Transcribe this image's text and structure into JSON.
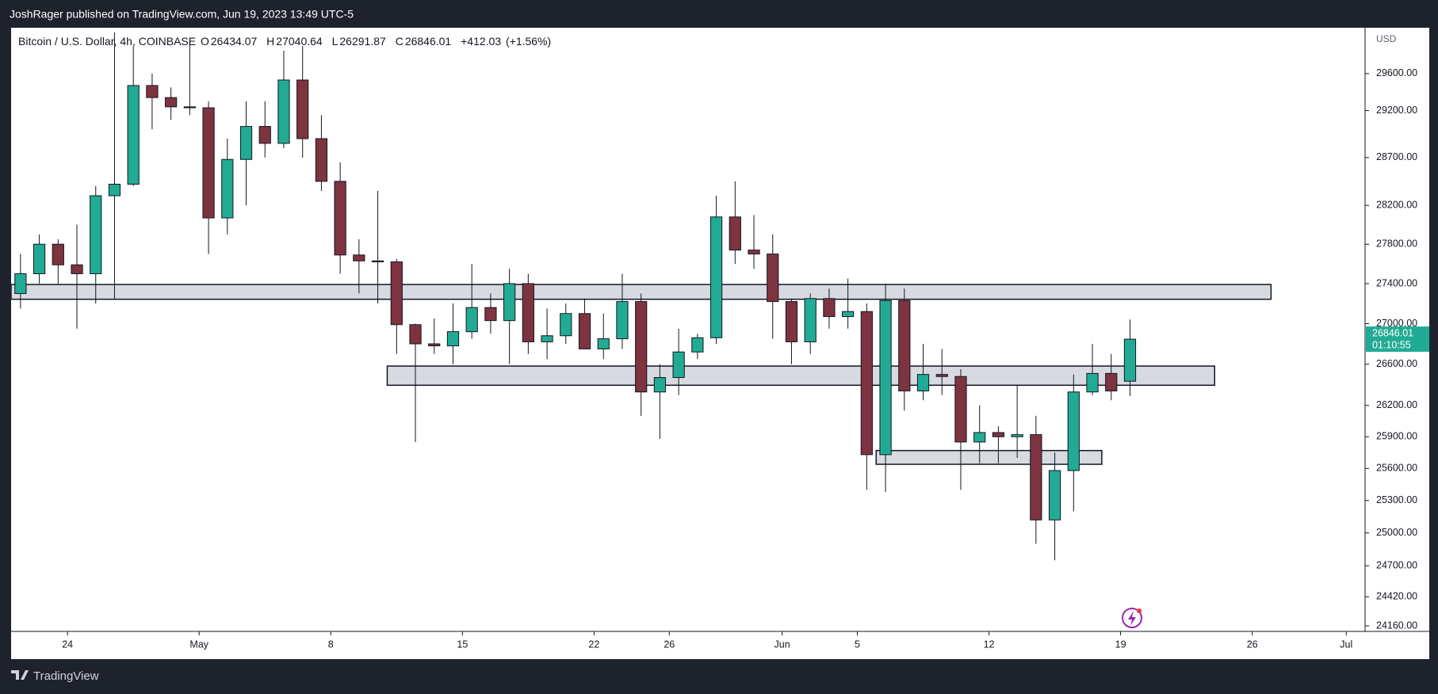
{
  "header": {
    "publisher": "JoshRager published on TradingView.com, Jun 19, 2023 13:49 UTC-5"
  },
  "footer": {
    "brand": "TradingView"
  },
  "chart_data": {
    "type": "candlestick",
    "title": "Bitcoin / U.S. Dollar, 4h, COINBASE",
    "ohlc": [
      {
        "label": "O",
        "value": 26434.07
      },
      {
        "label": "H",
        "value": 27040.64
      },
      {
        "label": "L",
        "value": 26291.87
      },
      {
        "label": "C",
        "value": 26846.01
      }
    ],
    "change": {
      "value": 412.03,
      "label": "+412.03"
    },
    "change_pct": {
      "value": 1.56,
      "label": "(+1.56%)"
    },
    "currency": "USD",
    "last_price": 26846.01,
    "countdown": "01:10:55",
    "log": true,
    "up_color": "#22ab94",
    "down_color": "#7e3340",
    "zone_color": "#d1d4dc",
    "x": [
      "2023-04-21",
      "2023-04-22",
      "2023-04-23",
      "2023-04-24",
      "2023-04-25",
      "2023-04-26",
      "2023-04-27",
      "2023-04-28",
      "2023-04-29",
      "2023-04-30",
      "2023-05-01",
      "2023-05-02",
      "2023-05-03",
      "2023-05-04",
      "2023-05-05",
      "2023-05-06",
      "2023-05-07",
      "2023-05-08",
      "2023-05-09",
      "2023-05-10",
      "2023-05-11",
      "2023-05-12",
      "2023-05-13",
      "2023-05-14",
      "2023-05-15",
      "2023-05-16",
      "2023-05-17",
      "2023-05-18",
      "2023-05-19",
      "2023-05-20",
      "2023-05-21",
      "2023-05-22",
      "2023-05-23",
      "2023-05-24",
      "2023-05-25",
      "2023-05-26",
      "2023-05-27",
      "2023-05-28",
      "2023-05-29",
      "2023-05-30",
      "2023-05-31",
      "2023-06-01",
      "2023-06-02",
      "2023-06-03",
      "2023-06-04",
      "2023-06-05",
      "2023-06-06",
      "2023-06-07",
      "2023-06-08",
      "2023-06-09",
      "2023-06-10",
      "2023-06-11",
      "2023-06-12",
      "2023-06-13",
      "2023-06-14",
      "2023-06-15",
      "2023-06-16",
      "2023-06-17",
      "2023-06-18",
      "2023-06-19"
    ],
    "candles": [
      [
        27300,
        27700,
        27150,
        27500
      ],
      [
        27500,
        27900,
        27400,
        27800
      ],
      [
        27800,
        27850,
        27400,
        27590
      ],
      [
        27590,
        28000,
        26950,
        27500
      ],
      [
        27500,
        28400,
        27200,
        28300
      ],
      [
        28300,
        30050,
        27250,
        28420
      ],
      [
        28420,
        29900,
        28400,
        29470
      ],
      [
        29470,
        29600,
        29000,
        29340
      ],
      [
        29340,
        29450,
        29100,
        29240
      ],
      [
        29240,
        29950,
        29150,
        29230
      ],
      [
        29230,
        29300,
        27700,
        28070
      ],
      [
        28070,
        28900,
        27900,
        28680
      ],
      [
        28680,
        29300,
        28200,
        29030
      ],
      [
        29030,
        29300,
        28700,
        28850
      ],
      [
        28850,
        29850,
        28800,
        29530
      ],
      [
        29530,
        29900,
        28700,
        28900
      ],
      [
        28900,
        29150,
        28350,
        28450
      ],
      [
        28450,
        28650,
        27500,
        27690
      ],
      [
        27690,
        27850,
        27300,
        27630
      ],
      [
        27630,
        28350,
        27200,
        27620
      ],
      [
        27620,
        27650,
        26700,
        26990
      ],
      [
        26990,
        27000,
        25850,
        26800
      ],
      [
        26800,
        27050,
        26700,
        26780
      ],
      [
        26780,
        27200,
        26600,
        26920
      ],
      [
        26920,
        27600,
        26850,
        27160
      ],
      [
        27160,
        27300,
        26900,
        27030
      ],
      [
        27030,
        27550,
        26600,
        27400
      ],
      [
        27400,
        27500,
        26700,
        26820
      ],
      [
        26820,
        27150,
        26650,
        26880
      ],
      [
        26880,
        27200,
        26800,
        27100
      ],
      [
        27100,
        27250,
        26750,
        26750
      ],
      [
        26750,
        27100,
        26650,
        26850
      ],
      [
        26850,
        27500,
        26750,
        27220
      ],
      [
        27220,
        27300,
        26100,
        26330
      ],
      [
        26330,
        26600,
        25880,
        26470
      ],
      [
        26470,
        26950,
        26300,
        26720
      ],
      [
        26720,
        26900,
        26650,
        26860
      ],
      [
        26860,
        28300,
        26800,
        28080
      ],
      [
        28080,
        28450,
        27600,
        27740
      ],
      [
        27740,
        28100,
        27550,
        27700
      ],
      [
        27700,
        27900,
        26850,
        27220
      ],
      [
        27220,
        27250,
        26600,
        26820
      ],
      [
        26820,
        27300,
        26700,
        27250
      ],
      [
        27250,
        27350,
        26950,
        27070
      ],
      [
        27070,
        27450,
        26950,
        27120
      ],
      [
        27120,
        27200,
        25400,
        25730
      ],
      [
        25730,
        27400,
        25380,
        27230
      ],
      [
        27230,
        27350,
        26150,
        26340
      ],
      [
        26340,
        26800,
        26250,
        26500
      ],
      [
        26500,
        26750,
        26300,
        26480
      ],
      [
        26480,
        26550,
        25400,
        25850
      ],
      [
        25850,
        26200,
        25650,
        25940
      ],
      [
        25940,
        26000,
        25650,
        25900
      ],
      [
        25900,
        26400,
        25700,
        25920
      ],
      [
        25920,
        26100,
        24900,
        25120
      ],
      [
        25120,
        25750,
        24750,
        25580
      ],
      [
        25580,
        26500,
        25200,
        26330
      ],
      [
        26330,
        26800,
        26300,
        26510
      ],
      [
        26510,
        26700,
        26250,
        26340
      ],
      [
        26434.07,
        27040.64,
        26291.87,
        26846.01
      ]
    ],
    "zones": [
      {
        "start": "2023-04-21",
        "end": "2023-06-27",
        "low": 27243,
        "high": 27391
      },
      {
        "start": "2023-05-11",
        "end": "2023-06-24",
        "low": 26395,
        "high": 26582
      },
      {
        "start": "2023-06-06",
        "end": "2023-06-18",
        "low": 25639,
        "high": 25769
      }
    ],
    "xlim": [
      "2023-04-21",
      "2023-07-02"
    ],
    "xticks": [
      {
        "value": "2023-04-24",
        "label": "24"
      },
      {
        "value": "2023-05-01",
        "label": "May"
      },
      {
        "value": "2023-05-08",
        "label": "8"
      },
      {
        "value": "2023-05-15",
        "label": "15"
      },
      {
        "value": "2023-05-22",
        "label": "22"
      },
      {
        "value": "2023-05-26",
        "label": "26"
      },
      {
        "value": "2023-06-01",
        "label": "Jun"
      },
      {
        "value": "2023-06-05",
        "label": "5"
      },
      {
        "value": "2023-06-12",
        "label": "12"
      },
      {
        "value": "2023-06-19",
        "label": "19"
      },
      {
        "value": "2023-06-26",
        "label": "26"
      },
      {
        "value": "2023-07-01",
        "label": "Jul"
      }
    ],
    "ylim": [
      24111,
      30103
    ],
    "yticks": [
      {
        "value": 29600,
        "label": "29600.00"
      },
      {
        "value": 29200,
        "label": "29200.00"
      },
      {
        "value": 28700,
        "label": "28700.00"
      },
      {
        "value": 28200,
        "label": "28200.00"
      },
      {
        "value": 27800,
        "label": "27800.00"
      },
      {
        "value": 27400,
        "label": "27400.00"
      },
      {
        "value": 27000,
        "label": "27000.00"
      },
      {
        "value": 26600,
        "label": "26600.00"
      },
      {
        "value": 26200,
        "label": "26200.00"
      },
      {
        "value": 25900,
        "label": "25900.00"
      },
      {
        "value": 25600,
        "label": "25600.00"
      },
      {
        "value": 25300,
        "label": "25300.00"
      },
      {
        "value": 25000,
        "label": "25000.00"
      },
      {
        "value": 24700,
        "label": "24700.00"
      },
      {
        "value": 24420,
        "label": "24420.00"
      },
      {
        "value": 24160,
        "label": "24160.00"
      }
    ]
  }
}
